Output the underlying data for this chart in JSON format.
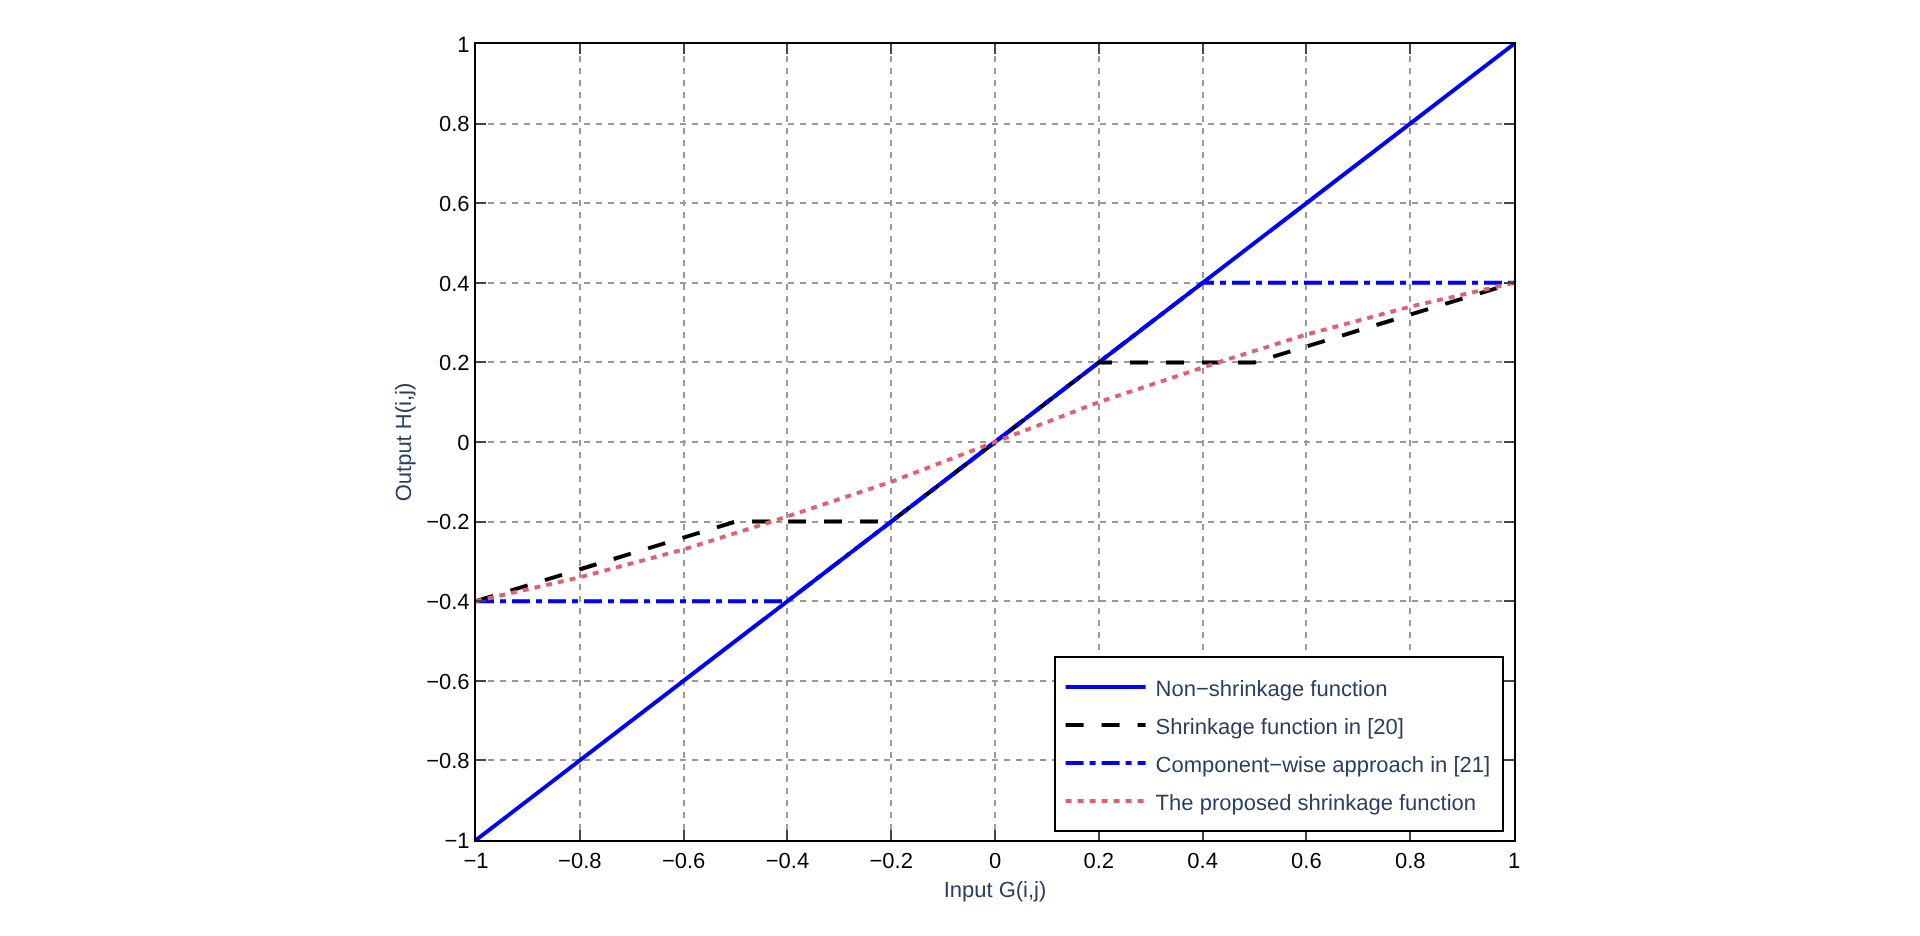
{
  "chart_data": {
    "type": "line",
    "xlabel": "Input G(i,j)",
    "ylabel": "Output H(i,j)",
    "xlim": [
      -1,
      1
    ],
    "ylim": [
      -1,
      1
    ],
    "xticks": [
      {
        "value": -1,
        "label": "−1"
      },
      {
        "value": -0.8,
        "label": "−0.8"
      },
      {
        "value": -0.6,
        "label": "−0.6"
      },
      {
        "value": -0.4,
        "label": "−0.4"
      },
      {
        "value": -0.2,
        "label": "−0.2"
      },
      0,
      0.2,
      0.4,
      0.6,
      0.8,
      1
    ],
    "yticks": [
      {
        "value": -1,
        "label": "−1"
      },
      {
        "value": -0.8,
        "label": "−0.8"
      },
      {
        "value": -0.6,
        "label": "−0.6"
      },
      {
        "value": -0.4,
        "label": "−0.4"
      },
      {
        "value": -0.2,
        "label": "−0.2"
      },
      0,
      0.2,
      0.4,
      0.6,
      0.8,
      1
    ],
    "grid": true,
    "legend": "bottom right",
    "series": [
      {
        "name": "Non−shrinkage function",
        "color": "#0000ff",
        "line_style": "solid",
        "x": [
          -1,
          1
        ],
        "values": [
          -1,
          1
        ]
      },
      {
        "name": "Shrinkage function in [20]",
        "color": "#000000",
        "line_style": "dashed",
        "x": [
          -1,
          -0.5,
          -0.2,
          0.2,
          0.5,
          1
        ],
        "values": [
          -0.4,
          -0.2,
          -0.2,
          0.2,
          0.2,
          0.4
        ]
      },
      {
        "name": "Component−wise approach in [21]",
        "color": "#0000ff",
        "line_style": "dashdot",
        "x": [
          -1,
          -0.4,
          0.4,
          1
        ],
        "values": [
          -0.4,
          -0.4,
          0.4,
          0.4
        ]
      },
      {
        "name": "The proposed shrinkage function",
        "color": "#e06070",
        "line_style": "dotted",
        "x": [
          -1,
          -0.8,
          -0.6,
          -0.43,
          -0.2,
          0,
          0.2,
          0.43,
          0.6,
          0.8,
          1
        ],
        "values": [
          -0.4,
          -0.34,
          -0.27,
          -0.2,
          -0.1,
          0,
          0.1,
          0.2,
          0.27,
          0.34,
          0.4
        ]
      }
    ]
  }
}
